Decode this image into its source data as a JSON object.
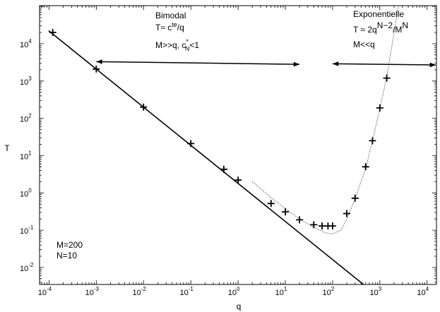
{
  "chart_data": {
    "type": "scatter",
    "xlabel": "q",
    "ylabel": "T",
    "x_scale": "log",
    "y_scale": "log",
    "xlim": [
      6.3e-05,
      15800.0
    ],
    "ylim": [
      0.0035,
      105000
    ],
    "x_ticks": [
      {
        "value": 0.0001,
        "base": "10",
        "exp": "-4"
      },
      {
        "value": 0.001,
        "base": "10",
        "exp": "-3"
      },
      {
        "value": 0.01,
        "base": "10",
        "exp": "-2"
      },
      {
        "value": 0.1,
        "base": "10",
        "exp": "-1"
      },
      {
        "value": 1,
        "base": "10",
        "exp": "0"
      },
      {
        "value": 10,
        "base": "10",
        "exp": "1"
      },
      {
        "value": 100,
        "base": "10",
        "exp": "2"
      },
      {
        "value": 1000,
        "base": "10",
        "exp": "3"
      },
      {
        "value": 10000,
        "base": "10",
        "exp": "4"
      }
    ],
    "y_ticks": [
      {
        "value": 0.01,
        "base": "10",
        "exp": "-2"
      },
      {
        "value": 0.1,
        "base": "10",
        "exp": "-1"
      },
      {
        "value": 1,
        "base": "10",
        "exp": "0"
      },
      {
        "value": 10,
        "base": "10",
        "exp": "1"
      },
      {
        "value": 100,
        "base": "10",
        "exp": "2"
      },
      {
        "value": 1000,
        "base": "10",
        "exp": "3"
      },
      {
        "value": 10000,
        "base": "10",
        "exp": "4"
      }
    ],
    "series": [
      {
        "kind": "markers",
        "marker": "plus",
        "points": [
          [
            0.00012,
            20000
          ],
          [
            0.001,
            2100
          ],
          [
            0.01,
            200
          ],
          [
            0.1,
            21
          ],
          [
            0.5,
            4.3
          ],
          [
            1,
            2.2
          ],
          [
            5,
            0.52
          ],
          [
            10,
            0.31
          ],
          [
            20,
            0.19
          ],
          [
            40,
            0.14
          ],
          [
            60,
            0.13
          ],
          [
            80,
            0.13
          ],
          [
            100,
            0.13
          ],
          [
            200,
            0.28
          ],
          [
            300,
            0.72
          ],
          [
            500,
            5
          ],
          [
            700,
            25
          ],
          [
            1000,
            190
          ],
          [
            1400,
            1200
          ]
        ]
      },
      {
        "kind": "line",
        "style": "solid",
        "points": [
          [
            0.0001,
            22000
          ],
          [
            450,
            0.0035
          ]
        ]
      },
      {
        "kind": "line",
        "style": "dotted",
        "points": [
          [
            2,
            2
          ],
          [
            5,
            0.75
          ],
          [
            10,
            0.38
          ],
          [
            20,
            0.2
          ],
          [
            40,
            0.12
          ],
          [
            70,
            0.085
          ],
          [
            100,
            0.08
          ],
          [
            150,
            0.1
          ],
          [
            200,
            0.2
          ],
          [
            300,
            0.7
          ],
          [
            500,
            4.5
          ],
          [
            700,
            25
          ],
          [
            1000,
            180
          ],
          [
            1400,
            1300
          ],
          [
            2500,
            105000
          ]
        ]
      }
    ],
    "arrows": [
      {
        "from": [
          0.001,
          3300
        ],
        "to": [
          20,
          2800
        ]
      },
      {
        "from": [
          100,
          2900
        ],
        "to": [
          15800,
          2700
        ]
      }
    ],
    "annotations": [
      {
        "id": "bimodal",
        "title": "Bimodal",
        "line1": "T≈ c",
        "line1_sup": "te",
        "line1_end": "/q",
        "line2": "M>>q, c",
        "line2_sup": "*",
        "line2_sub": "N",
        "line2_end": "<1"
      },
      {
        "id": "exponentielle",
        "title": "Exponentielle",
        "line1": "T ≈ 2q",
        "line1_sup": "N−2",
        "line1_mid": "/M",
        "line1_sup2": "N",
        "line2": "M<<q"
      },
      {
        "id": "params",
        "line1": "M=200",
        "line2": "N=10"
      }
    ]
  }
}
